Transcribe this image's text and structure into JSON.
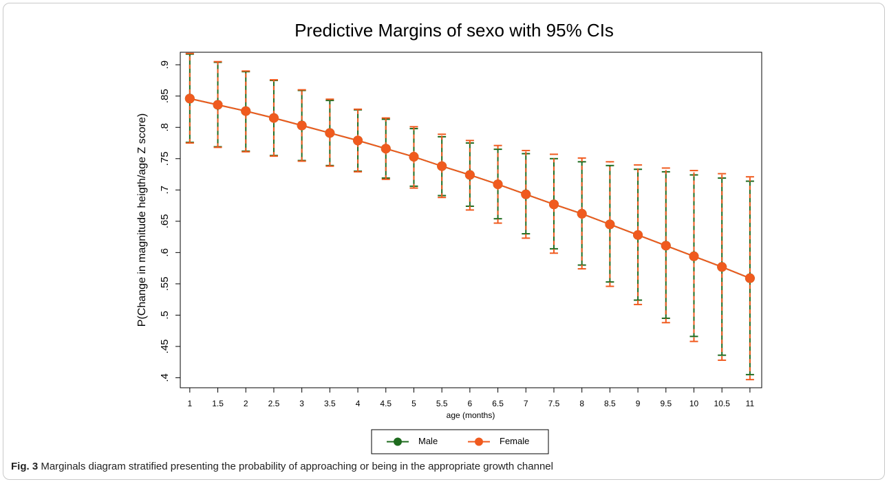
{
  "chart_data": {
    "type": "line",
    "title": "Predictive Margins of sexo with 95% CIs",
    "x_label": "age (months)",
    "y_label": "P(Change in magnitude heigth/age Z score)",
    "x": [
      1,
      1.5,
      2,
      2.5,
      3,
      3.5,
      4,
      4.5,
      5,
      5.5,
      6,
      6.5,
      7,
      7.5,
      8,
      8.5,
      9,
      9.5,
      10,
      10.5,
      11
    ],
    "series": [
      {
        "name": "Male",
        "color": "#1e6b1e",
        "values": [
          0.846,
          0.836,
          0.826,
          0.815,
          0.803,
          0.791,
          0.779,
          0.766,
          0.753,
          0.738,
          0.724,
          0.709,
          0.693,
          0.677,
          0.662,
          0.645,
          0.628,
          0.611,
          0.594,
          0.577,
          0.559
        ],
        "lower": [
          0.776,
          0.769,
          0.762,
          0.755,
          0.747,
          0.739,
          0.73,
          0.719,
          0.706,
          0.691,
          0.674,
          0.654,
          0.63,
          0.606,
          0.58,
          0.553,
          0.524,
          0.495,
          0.466,
          0.436,
          0.405
        ],
        "upper": [
          0.917,
          0.904,
          0.889,
          0.875,
          0.859,
          0.843,
          0.828,
          0.813,
          0.798,
          0.785,
          0.775,
          0.765,
          0.758,
          0.75,
          0.745,
          0.739,
          0.733,
          0.729,
          0.724,
          0.719,
          0.714
        ]
      },
      {
        "name": "Female",
        "color": "#f05a1e",
        "values": [
          0.846,
          0.836,
          0.826,
          0.815,
          0.803,
          0.791,
          0.779,
          0.766,
          0.753,
          0.738,
          0.724,
          0.709,
          0.693,
          0.677,
          0.662,
          0.645,
          0.628,
          0.611,
          0.594,
          0.577,
          0.559
        ],
        "lower": [
          0.775,
          0.768,
          0.761,
          0.754,
          0.746,
          0.738,
          0.729,
          0.717,
          0.703,
          0.688,
          0.668,
          0.647,
          0.623,
          0.599,
          0.574,
          0.546,
          0.517,
          0.488,
          0.458,
          0.428,
          0.397
        ],
        "upper": [
          0.918,
          0.905,
          0.89,
          0.876,
          0.86,
          0.845,
          0.829,
          0.815,
          0.801,
          0.789,
          0.779,
          0.771,
          0.763,
          0.757,
          0.751,
          0.745,
          0.74,
          0.735,
          0.731,
          0.726,
          0.721
        ]
      }
    ],
    "xlim": [
      0.83,
      11.21
    ],
    "ylim": [
      0.384,
      0.92
    ],
    "xticks": [
      1,
      1.5,
      2,
      2.5,
      3,
      3.5,
      4,
      4.5,
      5,
      5.5,
      6,
      6.5,
      7,
      7.5,
      8,
      8.5,
      9,
      9.5,
      10,
      10.5,
      11
    ],
    "yticks": [
      {
        "value": 0.4,
        "label": ".4"
      },
      {
        "value": 0.45,
        "label": ".45"
      },
      {
        "value": 0.5,
        "label": ".5"
      },
      {
        "value": 0.55,
        "label": ".55"
      },
      {
        "value": 0.6,
        "label": ".6"
      },
      {
        "value": 0.65,
        "label": ".65"
      },
      {
        "value": 0.7,
        "label": ".7"
      },
      {
        "value": 0.75,
        "label": ".75"
      },
      {
        "value": 0.8,
        "label": ".8"
      },
      {
        "value": 0.85,
        "label": ".85"
      },
      {
        "value": 0.9,
        "label": ".9"
      }
    ],
    "grid": false,
    "legend": "bottom"
  },
  "caption": {
    "label": "Fig. 3",
    "text": "Marginals diagram stratified presenting the probability of approaching or being in the appropriate growth channel"
  }
}
